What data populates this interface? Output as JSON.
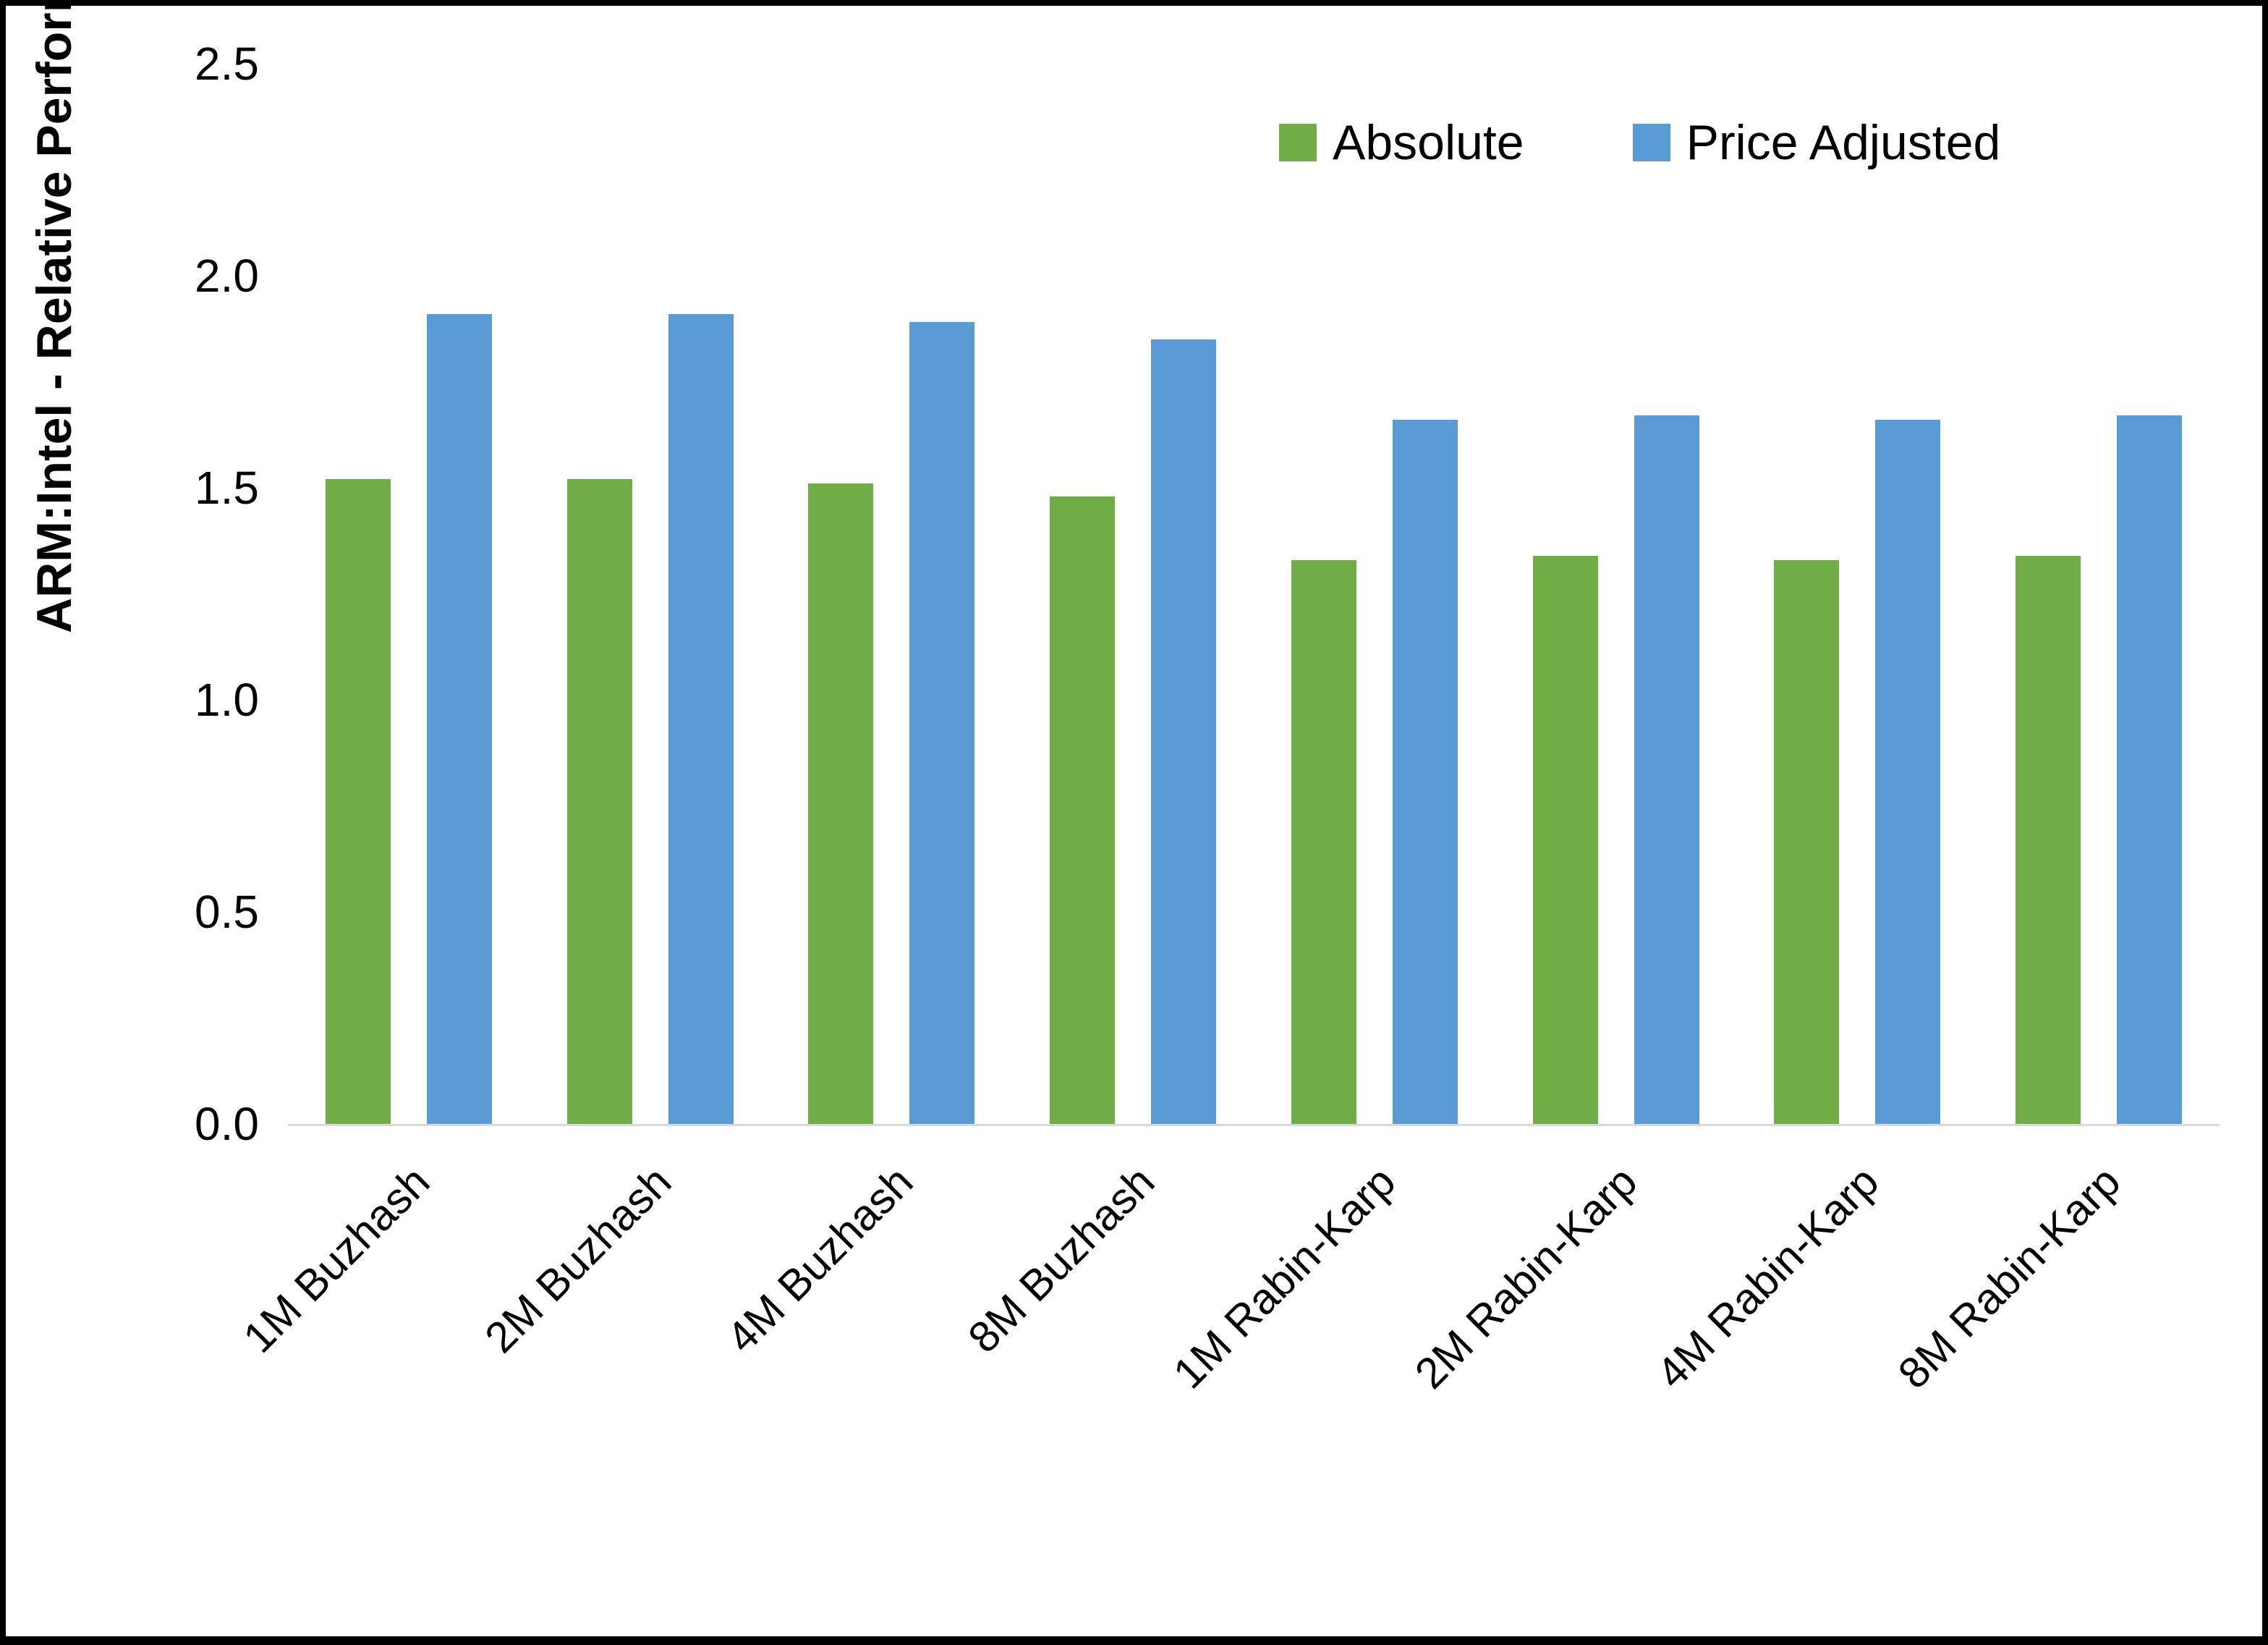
{
  "chart_data": {
    "type": "bar",
    "title": "",
    "xlabel": "",
    "ylabel": "ARM:Intel - Relative Performance",
    "ylim": [
      0,
      2.5
    ],
    "ytick_step": 0.5,
    "ytick_decimals": 1,
    "grid": false,
    "legend_position": "top-right",
    "categories": [
      "1M Buzhash",
      "2M Buzhash",
      "4M Buzhash",
      "8M Buzhash",
      "1M Rabin-Karp",
      "2M Rabin-Karp",
      "4M Rabin-Karp",
      "8M Rabin-Karp"
    ],
    "series": [
      {
        "name": "Absolute",
        "color": "#70AD47",
        "values": [
          1.52,
          1.52,
          1.51,
          1.48,
          1.33,
          1.34,
          1.33,
          1.34
        ]
      },
      {
        "name": "Price Adjusted",
        "color": "#5B9BD5",
        "values": [
          1.91,
          1.91,
          1.89,
          1.85,
          1.66,
          1.67,
          1.66,
          1.67
        ]
      }
    ]
  },
  "colors": {
    "axis_line": "#d9d9d9",
    "text": "#000000",
    "background": "#ffffff"
  }
}
